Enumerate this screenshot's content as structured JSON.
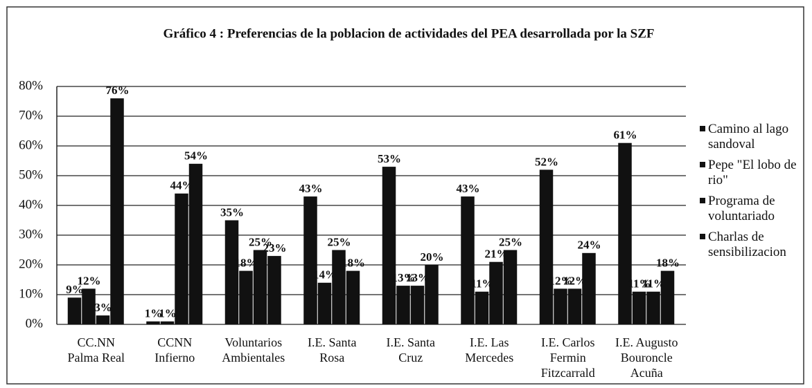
{
  "chart_data": {
    "type": "bar",
    "title": "Gráfico 4 : Preferencias de la poblacion de actividades del PEA desarrollada por la SZF",
    "categories": [
      "CC.NN\nPalma Real",
      "CCNN\nInfierno",
      "Voluntarios\nAmbientales",
      "I.E. Santa\nRosa",
      "I.E. Santa\nCruz",
      "I.E. Las\nMercedes",
      "I.E. Carlos\nFermin\nFitzcarrald",
      "I.E. Augusto\nBouroncle\nAcuña"
    ],
    "series": [
      {
        "name": "Camino al lago sandoval",
        "color": "#111111",
        "values": [
          9,
          1,
          35,
          43,
          53,
          43,
          52,
          61
        ],
        "value_labels": [
          "9%",
          "1%",
          "35%",
          "43%",
          "53%",
          "43%",
          "52%",
          "61%"
        ]
      },
      {
        "name": "Pepe \"El lobo de rio\"",
        "color": "#111111",
        "values": [
          12,
          1,
          18,
          14,
          13,
          11,
          12,
          11
        ],
        "value_labels": [
          "12%",
          "1%",
          "18%",
          "14%",
          "13%",
          "11%",
          "12%",
          "11%"
        ]
      },
      {
        "name": "Programa de voluntariado",
        "color": "#111111",
        "values": [
          3,
          44,
          25,
          25,
          13,
          21,
          12,
          11
        ],
        "value_labels": [
          "3%",
          "44%",
          "25%",
          "25%",
          "13%",
          "21%",
          "12%",
          "11%"
        ]
      },
      {
        "name": "Charlas de sensibilizacion",
        "color": "#111111",
        "values": [
          76,
          54,
          23,
          18,
          20,
          25,
          24,
          18
        ],
        "value_labels": [
          "76%",
          "54%",
          "23%",
          "18%",
          "20%",
          "25%",
          "24%",
          "18%"
        ]
      }
    ],
    "ylim": [
      0,
      80
    ],
    "yticks": [
      {
        "value": 0,
        "label": "0%"
      },
      {
        "value": 10,
        "label": "10%"
      },
      {
        "value": 20,
        "label": "20%"
      },
      {
        "value": 30,
        "label": "30%"
      },
      {
        "value": 40,
        "label": "40%"
      },
      {
        "value": 50,
        "label": "50%"
      },
      {
        "value": 60,
        "label": "60%"
      },
      {
        "value": 70,
        "label": "70%"
      },
      {
        "value": 80,
        "label": "80%"
      }
    ],
    "grid": true,
    "legend": "right"
  }
}
